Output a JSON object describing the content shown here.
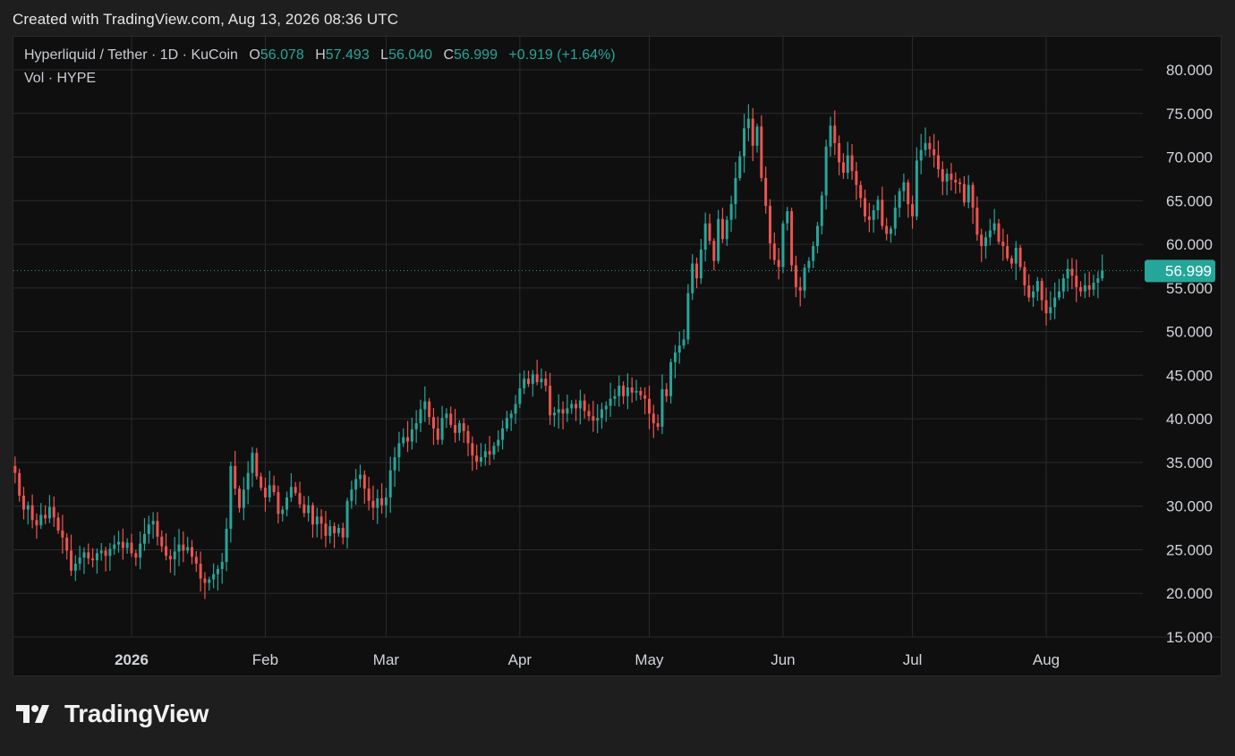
{
  "header": {
    "caption": "Created with TradingView.com, Aug 13, 2026 08:36 UTC"
  },
  "legend": {
    "symbol": "Hyperliquid / Tether · 1D · KuCoin",
    "o_label": "O",
    "o_value": "56.078",
    "h_label": "H",
    "h_value": "57.493",
    "l_label": "L",
    "l_value": "56.040",
    "c_label": "C",
    "c_value": "56.999",
    "change": "+0.919 (+1.64%)",
    "vol": "Vol · HYPE"
  },
  "footer": {
    "logo_text": "TradingView"
  },
  "colors": {
    "up": "#26a69a",
    "down": "#ef5350",
    "bg": "#0f0f0f",
    "grid": "#2b2b2b",
    "axis_text": "#d1d4dc"
  },
  "chart_data": {
    "type": "candlestick",
    "title": "",
    "xlabel": "",
    "ylabel": "",
    "ylim": [
      15,
      82
    ],
    "y_ticks": [
      "80.000",
      "75.000",
      "70.000",
      "65.000",
      "60.000",
      "55.000",
      "50.000",
      "45.000",
      "40.000",
      "35.000",
      "30.000",
      "25.000",
      "20.000",
      "15.000"
    ],
    "x_ticks": [
      {
        "label": "2026",
        "date": "2026-01-01",
        "bold": true
      },
      {
        "label": "Feb",
        "date": "2026-02-01"
      },
      {
        "label": "Mar",
        "date": "2026-03-01"
      },
      {
        "label": "Apr",
        "date": "2026-04-01"
      },
      {
        "label": "May",
        "date": "2026-05-01"
      },
      {
        "label": "Jun",
        "date": "2026-06-01"
      },
      {
        "label": "Jul",
        "date": "2026-07-01"
      },
      {
        "label": "Aug",
        "date": "2026-08-01"
      }
    ],
    "last_price": "56.999",
    "grid": true,
    "start_date": "2025-12-05",
    "close_series": [
      33.8,
      31.2,
      29.6,
      30.1,
      28.4,
      27.8,
      29.0,
      28.6,
      29.9,
      28.7,
      27.2,
      26.4,
      24.9,
      22.6,
      23.4,
      24.1,
      24.7,
      24.0,
      23.8,
      24.6,
      24.9,
      24.3,
      25.1,
      25.6,
      25.9,
      25.2,
      25.8,
      24.6,
      24.1,
      25.7,
      26.8,
      27.9,
      28.3,
      26.5,
      25.4,
      24.3,
      23.9,
      24.8,
      25.6,
      24.9,
      25.3,
      24.2,
      23.4,
      21.7,
      21.2,
      21.6,
      22.2,
      22.8,
      23.6,
      27.4,
      34.6,
      32.0,
      29.8,
      31.9,
      33.8,
      36.1,
      33.4,
      32.1,
      31.0,
      32.4,
      31.6,
      29.1,
      29.6,
      31.0,
      32.2,
      31.5,
      30.2,
      29.2,
      30.1,
      27.9,
      28.8,
      28.0,
      26.6,
      27.7,
      26.9,
      27.5,
      26.4,
      30.6,
      31.9,
      33.1,
      33.6,
      32.0,
      30.6,
      29.8,
      30.9,
      30.1,
      31.0,
      34.1,
      35.6,
      37.2,
      37.9,
      37.4,
      38.8,
      39.5,
      41.1,
      42.0,
      40.2,
      38.9,
      37.6,
      40.1,
      40.6,
      39.3,
      38.4,
      39.5,
      38.6,
      37.2,
      35.8,
      35.1,
      35.6,
      36.3,
      35.9,
      36.9,
      37.6,
      38.9,
      40.1,
      40.6,
      41.7,
      43.5,
      44.6,
      44.0,
      45.1,
      44.2,
      44.6,
      43.8,
      40.4,
      40.7,
      41.1,
      40.6,
      41.2,
      41.7,
      41.2,
      42.1,
      40.9,
      40.3,
      39.8,
      40.1,
      41.1,
      41.5,
      42.3,
      42.6,
      43.8,
      42.6,
      43.6,
      43.0,
      43.2,
      42.7,
      42.3,
      40.6,
      39.5,
      39.1,
      43.4,
      42.6,
      46.5,
      47.6,
      48.4,
      49.1,
      54.4,
      57.8,
      56.1,
      59.4,
      62.4,
      60.4,
      58.1,
      62.9,
      60.6,
      62.8,
      64.6,
      67.6,
      70.1,
      73.3,
      74.4,
      71.3,
      73.5,
      67.6,
      64.4,
      60.1,
      58.2,
      57.4,
      62.4,
      63.8,
      57.6,
      55.1,
      54.7,
      57.3,
      58.1,
      59.8,
      62.1,
      65.6,
      71.2,
      73.6,
      71.6,
      69.4,
      68.2,
      70.2,
      68.4,
      66.8,
      65.3,
      63.2,
      62.8,
      63.9,
      65.1,
      62.1,
      61.2,
      61.8,
      64.2,
      66.1,
      67.1,
      64.6,
      63.2,
      69.6,
      70.8,
      71.6,
      70.9,
      70.2,
      68.6,
      67.2,
      68.1,
      67.4,
      67.1,
      66.9,
      64.8,
      66.8,
      64.2,
      61.1,
      59.8,
      60.8,
      61.6,
      62.4,
      60.3,
      59.8,
      58.4,
      57.8,
      59.6,
      57.4,
      55.3,
      53.9,
      54.6,
      55.8,
      53.6,
      52.1,
      52.8,
      53.9,
      54.6,
      56.1,
      57.2,
      56.4,
      55.1,
      54.6,
      55.3,
      54.8,
      55.6,
      56.1,
      56.999
    ]
  }
}
